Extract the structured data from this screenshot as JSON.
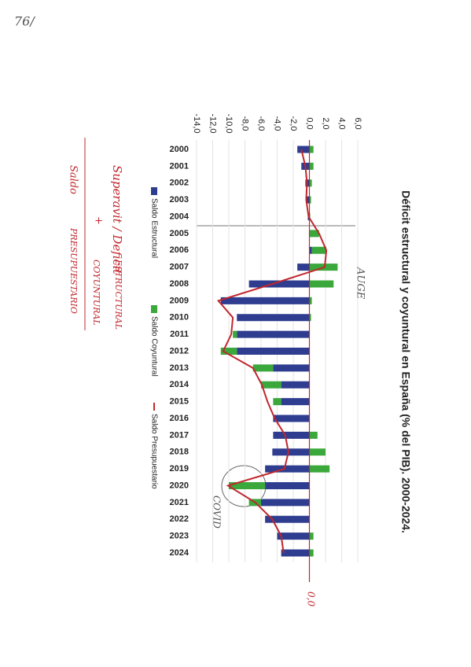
{
  "chart_data": {
    "type": "bar",
    "title": "Déficit estructural y coyuntural en España (% del PIB). 2000-2024.",
    "categories": [
      "2000",
      "2001",
      "2002",
      "2003",
      "2004",
      "2005",
      "2006",
      "2007",
      "2008",
      "2009",
      "2010",
      "2011",
      "2012",
      "2013",
      "2014",
      "2015",
      "2016",
      "2017",
      "2018",
      "2019",
      "2020",
      "2021",
      "2022",
      "2023",
      "2024"
    ],
    "series": [
      {
        "name": "Saldo Estructural",
        "color": "#2e3d8f",
        "type": "bar",
        "values": [
          -1.5,
          -1.0,
          -0.5,
          -0.4,
          -0.2,
          0.0,
          0.3,
          -1.5,
          -7.5,
          -11.0,
          -9.0,
          -9.0,
          -9.0,
          -4.5,
          -3.5,
          -3.5,
          -4.5,
          -4.5,
          -4.6,
          -5.5,
          -5.5,
          -6.0,
          -5.5,
          -4.0,
          -3.5
        ]
      },
      {
        "name": "Saldo Coyuntural",
        "color": "#3aa83a",
        "type": "bar",
        "values": [
          0.5,
          0.5,
          0.3,
          0.2,
          0.1,
          1.2,
          1.8,
          3.5,
          3.0,
          0.3,
          0.2,
          -0.5,
          -2.0,
          -2.5,
          -2.5,
          -1.0,
          0.0,
          1.0,
          2.0,
          2.5,
          -4.5,
          -1.5,
          0.0,
          0.5,
          0.5
        ]
      },
      {
        "name": "Saldo Presupuestario",
        "color": "#c0272d",
        "type": "line",
        "values": [
          -1.0,
          -0.5,
          -0.3,
          -0.4,
          -0.1,
          1.2,
          2.1,
          1.9,
          -4.6,
          -11.3,
          -9.5,
          -9.7,
          -10.7,
          -7.0,
          -5.9,
          -5.2,
          -4.3,
          -3.0,
          -2.6,
          -3.1,
          -10.1,
          -6.7,
          -4.6,
          -3.5,
          -3.2
        ]
      }
    ],
    "ylim": [
      -14,
      6
    ],
    "yticks": [
      {
        "value": -14,
        "label": "-14,0"
      },
      {
        "value": -12,
        "label": "-12,0"
      },
      {
        "value": -10,
        "label": "-10,0"
      },
      {
        "value": -8,
        "label": "-8,0"
      },
      {
        "value": -6,
        "label": "-6,0"
      },
      {
        "value": -4,
        "label": "-4,0"
      },
      {
        "value": -2,
        "label": "-2,0"
      },
      {
        "value": 0,
        "label": "0,0"
      },
      {
        "value": 2,
        "label": "2,0"
      },
      {
        "value": 4,
        "label": "4,0"
      },
      {
        "value": 6,
        "label": "6,0"
      }
    ],
    "grid": true,
    "annotations": [
      "76/",
      "AUGE",
      "COVID",
      "0,0",
      "Superavit / Deficit",
      "ESTRUCTURAL",
      "+",
      "COYUNTURAL",
      "Saldo",
      "PRESUPUESTARIO"
    ]
  }
}
